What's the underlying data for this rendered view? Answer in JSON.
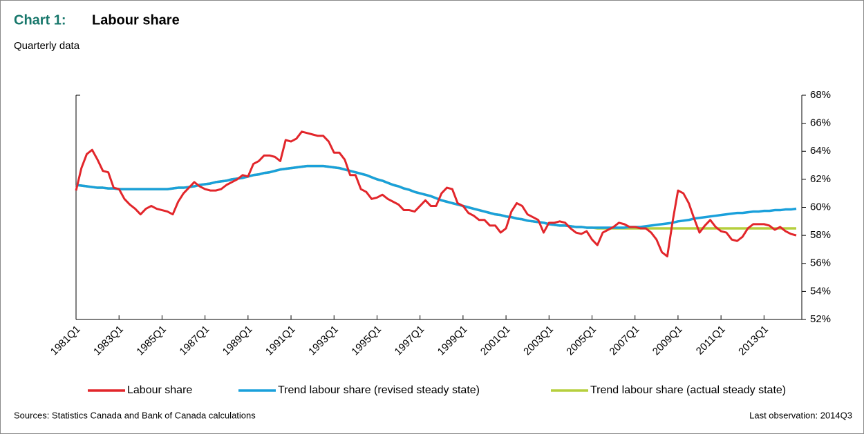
{
  "chart_data": {
    "type": "line",
    "title_label": "Chart 1:",
    "title": "Labour share",
    "subtitle": "Quarterly data",
    "source": "Sources: Statistics Canada and Bank of Canada calculations",
    "note": "Last observation: 2014Q3",
    "categories": [
      "1981Q1",
      null,
      null,
      null,
      null,
      null,
      null,
      null,
      "1983Q1",
      null,
      null,
      null,
      null,
      null,
      null,
      null,
      "1985Q1",
      null,
      null,
      null,
      null,
      null,
      null,
      null,
      "1987Q1",
      null,
      null,
      null,
      null,
      null,
      null,
      null,
      "1989Q1",
      null,
      null,
      null,
      null,
      null,
      null,
      null,
      "1991Q1",
      null,
      null,
      null,
      null,
      null,
      null,
      null,
      "1993Q1",
      null,
      null,
      null,
      null,
      null,
      null,
      null,
      "1995Q1",
      null,
      null,
      null,
      null,
      null,
      null,
      null,
      "1997Q1",
      null,
      null,
      null,
      null,
      null,
      null,
      null,
      "1999Q1",
      null,
      null,
      null,
      null,
      null,
      null,
      null,
      "2001Q1",
      null,
      null,
      null,
      null,
      null,
      null,
      null,
      "2003Q1",
      null,
      null,
      null,
      null,
      null,
      null,
      null,
      "2005Q1",
      null,
      null,
      null,
      null,
      null,
      null,
      null,
      "2007Q1",
      null,
      null,
      null,
      null,
      null,
      null,
      null,
      "2009Q1",
      null,
      null,
      null,
      null,
      null,
      null,
      null,
      "2011Q1",
      null,
      null,
      null,
      null,
      null,
      null,
      null,
      "2013Q1",
      null,
      null,
      null,
      null,
      null,
      null
    ],
    "series": [
      {
        "name": "Labour share",
        "color": "#e2262b",
        "values": [
          61.2,
          62.8,
          63.8,
          64.1,
          63.4,
          62.6,
          62.5,
          61.4,
          61.3,
          60.6,
          60.2,
          59.9,
          59.5,
          59.9,
          60.1,
          59.9,
          59.8,
          59.7,
          59.5,
          60.4,
          61.0,
          61.4,
          61.8,
          61.5,
          61.3,
          61.2,
          61.2,
          61.3,
          61.6,
          61.8,
          62.0,
          62.3,
          62.2,
          63.1,
          63.3,
          63.7,
          63.7,
          63.6,
          63.3,
          64.8,
          64.7,
          64.9,
          65.4,
          65.3,
          65.2,
          65.1,
          65.1,
          64.7,
          63.9,
          63.9,
          63.4,
          62.3,
          62.3,
          61.3,
          61.1,
          60.6,
          60.7,
          60.9,
          60.6,
          60.4,
          60.2,
          59.8,
          59.8,
          59.7,
          60.1,
          60.5,
          60.1,
          60.1,
          61.0,
          61.4,
          61.3,
          60.3,
          60.1,
          59.6,
          59.4,
          59.1,
          59.1,
          58.7,
          58.7,
          58.2,
          58.5,
          59.7,
          60.3,
          60.1,
          59.5,
          59.3,
          59.1,
          58.2,
          58.9,
          58.9,
          59.0,
          58.9,
          58.5,
          58.2,
          58.1,
          58.3,
          57.7,
          57.3,
          58.2,
          58.4,
          58.6,
          58.9,
          58.8,
          58.6,
          58.6,
          58.5,
          58.5,
          58.2,
          57.7,
          56.8,
          56.5,
          59.0,
          61.2,
          61.0,
          60.3,
          59.2,
          58.2,
          58.7,
          59.1,
          58.6,
          58.3,
          58.2,
          57.7,
          57.6,
          57.9,
          58.5,
          58.8,
          58.8,
          58.8,
          58.7,
          58.4,
          58.6,
          58.3,
          58.1,
          58.0
        ]
      },
      {
        "name": "Trend labour share (revised steady state)",
        "color": "#1aa0db",
        "values": [
          61.6,
          61.55,
          61.5,
          61.45,
          61.4,
          61.4,
          61.35,
          61.35,
          61.3,
          61.3,
          61.3,
          61.3,
          61.3,
          61.3,
          61.3,
          61.3,
          61.3,
          61.3,
          61.35,
          61.4,
          61.4,
          61.45,
          61.5,
          61.6,
          61.65,
          61.7,
          61.8,
          61.85,
          61.9,
          62.0,
          62.05,
          62.1,
          62.2,
          62.3,
          62.35,
          62.45,
          62.5,
          62.6,
          62.7,
          62.75,
          62.8,
          62.85,
          62.9,
          62.95,
          62.95,
          62.95,
          62.95,
          62.9,
          62.85,
          62.8,
          62.7,
          62.6,
          62.5,
          62.4,
          62.3,
          62.15,
          62.0,
          61.9,
          61.75,
          61.6,
          61.5,
          61.35,
          61.25,
          61.1,
          61.0,
          60.9,
          60.8,
          60.65,
          60.5,
          60.4,
          60.3,
          60.2,
          60.1,
          60.0,
          59.9,
          59.8,
          59.7,
          59.6,
          59.5,
          59.45,
          59.35,
          59.3,
          59.2,
          59.15,
          59.05,
          59.0,
          58.95,
          58.9,
          58.8,
          58.75,
          58.7,
          58.7,
          58.65,
          58.6,
          58.6,
          58.55,
          58.55,
          58.55,
          58.55,
          58.55,
          58.55,
          58.55,
          58.55,
          58.6,
          58.6,
          58.6,
          58.65,
          58.7,
          58.75,
          58.8,
          58.85,
          58.9,
          59.0,
          59.05,
          59.1,
          59.2,
          59.25,
          59.3,
          59.35,
          59.4,
          59.45,
          59.5,
          59.55,
          59.6,
          59.6,
          59.65,
          59.7,
          59.7,
          59.75,
          59.75,
          59.8,
          59.8,
          59.85,
          59.85,
          59.9
        ]
      },
      {
        "name": "Trend labour share (actual steady state)",
        "color": "#b6cf3d",
        "values": [
          61.6,
          61.55,
          61.5,
          61.45,
          61.4,
          61.4,
          61.35,
          61.35,
          61.3,
          61.3,
          61.3,
          61.3,
          61.3,
          61.3,
          61.3,
          61.3,
          61.3,
          61.3,
          61.35,
          61.4,
          61.4,
          61.45,
          61.5,
          61.6,
          61.65,
          61.7,
          61.8,
          61.85,
          61.9,
          62.0,
          62.05,
          62.1,
          62.2,
          62.3,
          62.35,
          62.45,
          62.5,
          62.6,
          62.7,
          62.75,
          62.8,
          62.85,
          62.9,
          62.95,
          62.95,
          62.95,
          62.95,
          62.9,
          62.85,
          62.8,
          62.7,
          62.6,
          62.5,
          62.4,
          62.3,
          62.15,
          62.0,
          61.9,
          61.75,
          61.6,
          61.5,
          61.35,
          61.25,
          61.1,
          61.0,
          60.9,
          60.8,
          60.65,
          60.5,
          60.4,
          60.3,
          60.2,
          60.1,
          60.0,
          59.9,
          59.8,
          59.7,
          59.6,
          59.5,
          59.45,
          59.35,
          59.3,
          59.2,
          59.15,
          59.05,
          59.0,
          58.95,
          58.9,
          58.8,
          58.75,
          58.7,
          58.7,
          58.65,
          58.6,
          58.6,
          58.55,
          58.55,
          58.5,
          58.5,
          58.5,
          58.5,
          58.5,
          58.5,
          58.5,
          58.5,
          58.5,
          58.5,
          58.5,
          58.5,
          58.5,
          58.5,
          58.5,
          58.5,
          58.5,
          58.5,
          58.5,
          58.5,
          58.5,
          58.5,
          58.5,
          58.5,
          58.5,
          58.5,
          58.5,
          58.5,
          58.5,
          58.5,
          58.5,
          58.5,
          58.5,
          58.5,
          58.5,
          58.5,
          58.5,
          58.5
        ]
      }
    ],
    "ylim": [
      52,
      68
    ],
    "yticks": [
      {
        "value": 52,
        "label": "52%"
      },
      {
        "value": 54,
        "label": "54%"
      },
      {
        "value": 56,
        "label": "56%"
      },
      {
        "value": 58,
        "label": "58%"
      },
      {
        "value": 60,
        "label": "60%"
      },
      {
        "value": 62,
        "label": "62%"
      },
      {
        "value": 64,
        "label": "64%"
      },
      {
        "value": 66,
        "label": "66%"
      },
      {
        "value": 68,
        "label": "68%"
      }
    ],
    "grid": false,
    "legend": "bottom"
  }
}
